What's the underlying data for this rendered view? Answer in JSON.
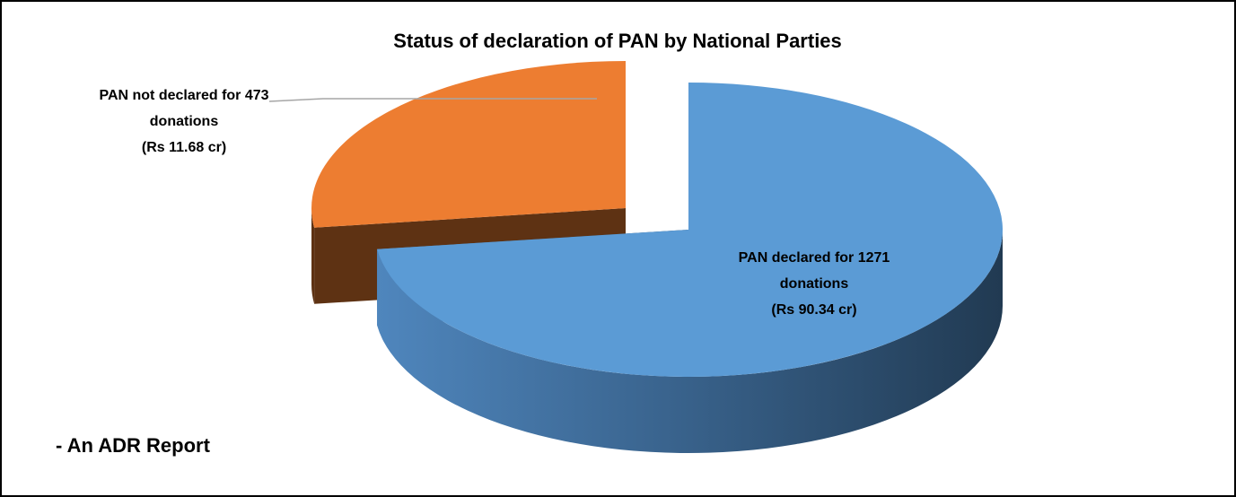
{
  "chart_data": {
    "type": "pie",
    "title": "Status of declaration of PAN by National Parties",
    "categories": [
      "PAN declared",
      "PAN not declared"
    ],
    "values": [
      1271,
      473
    ],
    "value_labels": [
      [
        "PAN declared for 1271",
        "donations",
        "(Rs 90.34 cr)"
      ],
      [
        "PAN not declared for 473",
        "donations",
        "(Rs 11.68 cr)"
      ]
    ],
    "colors": [
      "#5b9bd5",
      "#ed7d31"
    ],
    "annotation": "- An ADR Report"
  }
}
